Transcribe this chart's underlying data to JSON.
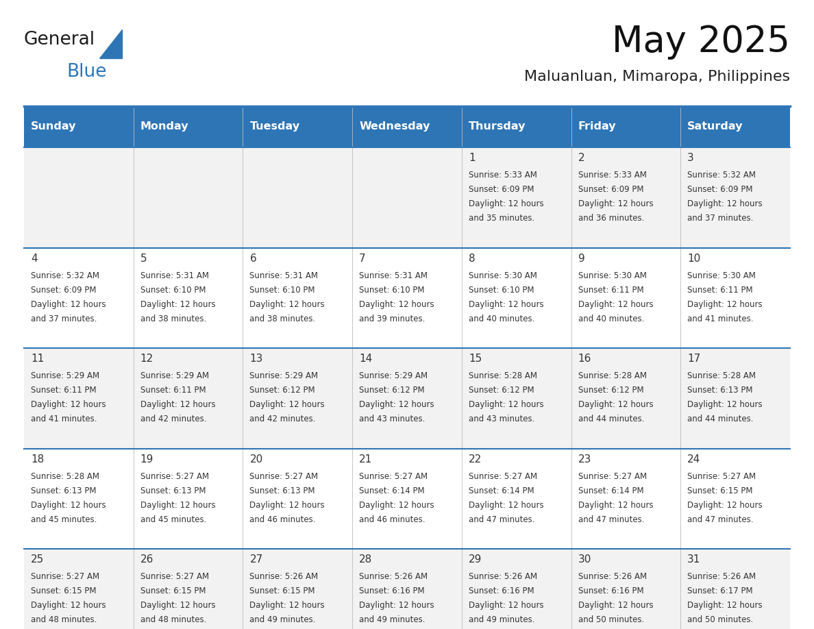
{
  "title": "May 2025",
  "subtitle": "Maluanluan, Mimaropa, Philippines",
  "header_bg": "#2E75B6",
  "header_text_color": "#FFFFFF",
  "days_of_week": [
    "Sunday",
    "Monday",
    "Tuesday",
    "Wednesday",
    "Thursday",
    "Friday",
    "Saturday"
  ],
  "row_bg_odd": "#F2F2F2",
  "row_bg_even": "#FFFFFF",
  "cell_text_color": "#333333",
  "border_color": "#2E75B6",
  "calendar_data": [
    [
      {
        "day": "",
        "sunrise": "",
        "sunset": "",
        "daylight": ""
      },
      {
        "day": "",
        "sunrise": "",
        "sunset": "",
        "daylight": ""
      },
      {
        "day": "",
        "sunrise": "",
        "sunset": "",
        "daylight": ""
      },
      {
        "day": "",
        "sunrise": "",
        "sunset": "",
        "daylight": ""
      },
      {
        "day": "1",
        "sunrise": "5:33 AM",
        "sunset": "6:09 PM",
        "daylight": "12 hours and 35 minutes."
      },
      {
        "day": "2",
        "sunrise": "5:33 AM",
        "sunset": "6:09 PM",
        "daylight": "12 hours and 36 minutes."
      },
      {
        "day": "3",
        "sunrise": "5:32 AM",
        "sunset": "6:09 PM",
        "daylight": "12 hours and 37 minutes."
      }
    ],
    [
      {
        "day": "4",
        "sunrise": "5:32 AM",
        "sunset": "6:09 PM",
        "daylight": "12 hours and 37 minutes."
      },
      {
        "day": "5",
        "sunrise": "5:31 AM",
        "sunset": "6:10 PM",
        "daylight": "12 hours and 38 minutes."
      },
      {
        "day": "6",
        "sunrise": "5:31 AM",
        "sunset": "6:10 PM",
        "daylight": "12 hours and 38 minutes."
      },
      {
        "day": "7",
        "sunrise": "5:31 AM",
        "sunset": "6:10 PM",
        "daylight": "12 hours and 39 minutes."
      },
      {
        "day": "8",
        "sunrise": "5:30 AM",
        "sunset": "6:10 PM",
        "daylight": "12 hours and 40 minutes."
      },
      {
        "day": "9",
        "sunrise": "5:30 AM",
        "sunset": "6:11 PM",
        "daylight": "12 hours and 40 minutes."
      },
      {
        "day": "10",
        "sunrise": "5:30 AM",
        "sunset": "6:11 PM",
        "daylight": "12 hours and 41 minutes."
      }
    ],
    [
      {
        "day": "11",
        "sunrise": "5:29 AM",
        "sunset": "6:11 PM",
        "daylight": "12 hours and 41 minutes."
      },
      {
        "day": "12",
        "sunrise": "5:29 AM",
        "sunset": "6:11 PM",
        "daylight": "12 hours and 42 minutes."
      },
      {
        "day": "13",
        "sunrise": "5:29 AM",
        "sunset": "6:12 PM",
        "daylight": "12 hours and 42 minutes."
      },
      {
        "day": "14",
        "sunrise": "5:29 AM",
        "sunset": "6:12 PM",
        "daylight": "12 hours and 43 minutes."
      },
      {
        "day": "15",
        "sunrise": "5:28 AM",
        "sunset": "6:12 PM",
        "daylight": "12 hours and 43 minutes."
      },
      {
        "day": "16",
        "sunrise": "5:28 AM",
        "sunset": "6:12 PM",
        "daylight": "12 hours and 44 minutes."
      },
      {
        "day": "17",
        "sunrise": "5:28 AM",
        "sunset": "6:13 PM",
        "daylight": "12 hours and 44 minutes."
      }
    ],
    [
      {
        "day": "18",
        "sunrise": "5:28 AM",
        "sunset": "6:13 PM",
        "daylight": "12 hours and 45 minutes."
      },
      {
        "day": "19",
        "sunrise": "5:27 AM",
        "sunset": "6:13 PM",
        "daylight": "12 hours and 45 minutes."
      },
      {
        "day": "20",
        "sunrise": "5:27 AM",
        "sunset": "6:13 PM",
        "daylight": "12 hours and 46 minutes."
      },
      {
        "day": "21",
        "sunrise": "5:27 AM",
        "sunset": "6:14 PM",
        "daylight": "12 hours and 46 minutes."
      },
      {
        "day": "22",
        "sunrise": "5:27 AM",
        "sunset": "6:14 PM",
        "daylight": "12 hours and 47 minutes."
      },
      {
        "day": "23",
        "sunrise": "5:27 AM",
        "sunset": "6:14 PM",
        "daylight": "12 hours and 47 minutes."
      },
      {
        "day": "24",
        "sunrise": "5:27 AM",
        "sunset": "6:15 PM",
        "daylight": "12 hours and 47 minutes."
      }
    ],
    [
      {
        "day": "25",
        "sunrise": "5:27 AM",
        "sunset": "6:15 PM",
        "daylight": "12 hours and 48 minutes."
      },
      {
        "day": "26",
        "sunrise": "5:27 AM",
        "sunset": "6:15 PM",
        "daylight": "12 hours and 48 minutes."
      },
      {
        "day": "27",
        "sunrise": "5:26 AM",
        "sunset": "6:15 PM",
        "daylight": "12 hours and 49 minutes."
      },
      {
        "day": "28",
        "sunrise": "5:26 AM",
        "sunset": "6:16 PM",
        "daylight": "12 hours and 49 minutes."
      },
      {
        "day": "29",
        "sunrise": "5:26 AM",
        "sunset": "6:16 PM",
        "daylight": "12 hours and 49 minutes."
      },
      {
        "day": "30",
        "sunrise": "5:26 AM",
        "sunset": "6:16 PM",
        "daylight": "12 hours and 50 minutes."
      },
      {
        "day": "31",
        "sunrise": "5:26 AM",
        "sunset": "6:17 PM",
        "daylight": "12 hours and 50 minutes."
      }
    ]
  ],
  "logo_color_general": "#1a1a1a",
  "logo_color_blue": "#2E75B6",
  "logo_triangle_color": "#2E75B6",
  "fig_width": 11.88,
  "fig_height": 9.18,
  "dpi": 100
}
